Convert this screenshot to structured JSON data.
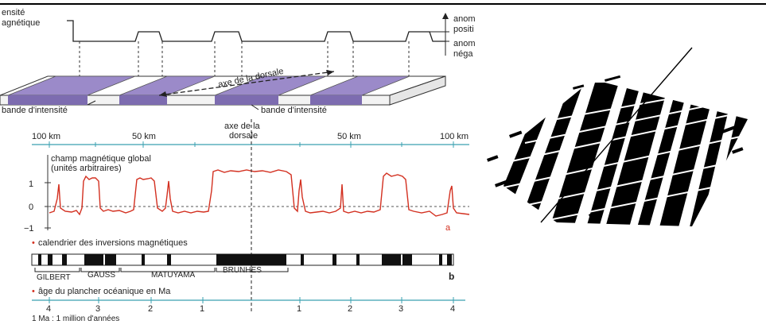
{
  "top_panel": {
    "label_intensity": [
      "ensité",
      "agnétique"
    ],
    "label_pos": [
      "anom",
      "positi"
    ],
    "label_neg": [
      "anom",
      "néga"
    ],
    "axis_label": "axe de la dorsale",
    "band_left": "bande d'intensité",
    "band_right": "bande d'intensité"
  },
  "middle_panel": {
    "scale_left": "100 km",
    "scale_left_mid": "50 km",
    "scale_right_mid": "50 km",
    "scale_right": "100 km",
    "axis_title": [
      "axe de la",
      "dorsale"
    ],
    "curve_title": [
      "champ magnétique global",
      "(unités arbitraires)"
    ],
    "y_ticks": [
      "1",
      "0",
      "−1"
    ],
    "curve_letter": "a"
  },
  "reversal_panel": {
    "title_bullet": "•",
    "title": "calendrier des inversions magnétiques",
    "chrons": [
      "GILBERT",
      "GAUSS",
      "MATUYAMA",
      "BRUNHES"
    ],
    "letter": "b"
  },
  "age_panel": {
    "title_bullet": "•",
    "title": "âge du plancher océanique en Ma",
    "ticks_left": [
      "4",
      "3",
      "2",
      "1"
    ],
    "ticks_right": [
      "1",
      "2",
      "3",
      "4"
    ],
    "footnote": "1 Ma : 1 million d'années"
  },
  "colors": {
    "band": "#9b8ac9",
    "curve": "#d33020",
    "axis": "#3aa0b0",
    "stripe": "#000000"
  }
}
